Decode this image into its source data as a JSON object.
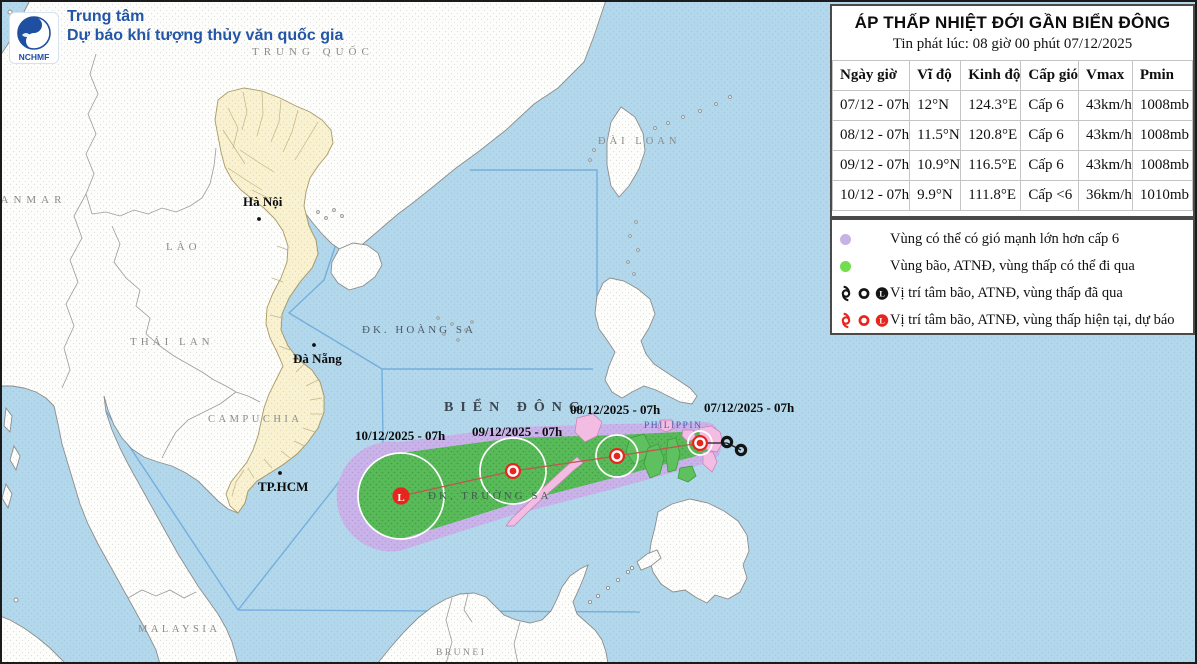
{
  "header": {
    "org_line1": "Trung tâm",
    "org_line2": "Dự báo khí tượng thủy văn quốc gia",
    "logo_text": "NCHMF"
  },
  "panel": {
    "title": "ÁP THẤP NHIỆT ĐỚI GẦN BIỂN ĐÔNG",
    "issued": "Tin phát lúc: 08 giờ 00 phút 07/12/2025",
    "table": {
      "headers": [
        "Ngày giờ",
        "Vĩ độ",
        "Kinh độ",
        "Cấp gió",
        "Vmax",
        "Pmin"
      ],
      "rows": [
        [
          "07/12 - 07h",
          "12°N",
          "124.3°E",
          "Cấp 6",
          "43km/h",
          "1008mb"
        ],
        [
          "08/12 - 07h",
          "11.5°N",
          "120.8°E",
          "Cấp 6",
          "43km/h",
          "1008mb"
        ],
        [
          "09/12 - 07h",
          "10.9°N",
          "116.5°E",
          "Cấp 6",
          "43km/h",
          "1008mb"
        ],
        [
          "10/12 - 07h",
          "9.9°N",
          "111.8°E",
          "Cấp <6",
          "36km/h",
          "1010mb"
        ]
      ]
    },
    "legend": [
      {
        "type": "dot",
        "color": "#c7b2e8",
        "label": "Vùng có thể có gió mạnh lớn hơn cấp 6"
      },
      {
        "type": "dot",
        "color": "#74dd4e",
        "label": "Vùng bão, ATNĐ, vùng thấp có thể đi qua"
      },
      {
        "type": "symbols",
        "color": "#141414",
        "label": "Vị trí tâm bão, ATNĐ, vùng thấp đã qua"
      },
      {
        "type": "symbols",
        "color": "#e8251d",
        "label": "Vị trí tâm bão, ATNĐ, vùng thấp hiện tại, dự báo"
      }
    ]
  },
  "storm": {
    "low_letter": "L"
  },
  "map": {
    "countries": {
      "trung_quoc": "TRUNG QUỐC",
      "dai_loan": "ĐÀI LOAN",
      "myanmar": "MYANMAR",
      "lao": "LÀO",
      "thai_lan": "THÁI LAN",
      "campuchia": "CAMPUCHIA",
      "malaysia": "MALAYSIA",
      "brunei": "BRUNEI",
      "philippin": "PHILIPPIN"
    },
    "seas": {
      "bien_dong": "BIỂN ĐÔNG",
      "hoang_sa": "ĐK. HOÀNG SA",
      "truong_sa": "ĐK. TRƯỜNG SA"
    },
    "cities": {
      "ha_noi": "Hà Nội",
      "da_nang": "Đà Nẵng",
      "tp_hcm": "TP.HCM"
    },
    "track_labels": [
      "10/12/2025 - 07h",
      "09/12/2025 - 07h",
      "08/12/2025 - 07h",
      "07/12/2025 - 07h"
    ]
  }
}
